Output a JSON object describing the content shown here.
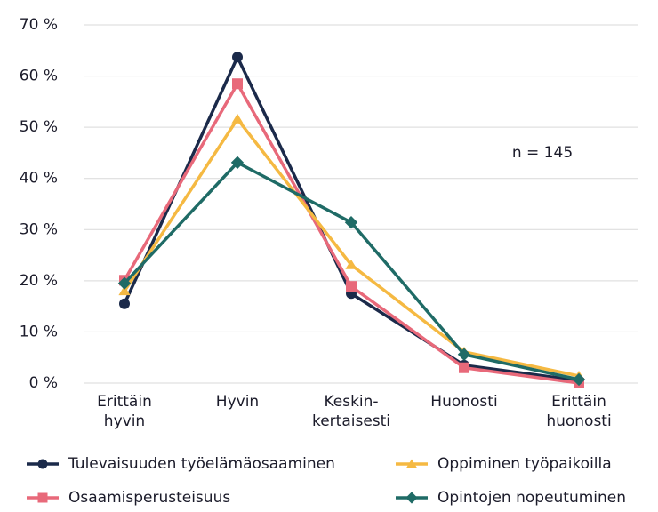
{
  "chart_data": {
    "type": "line",
    "annotation": "n = 145",
    "categories": [
      [
        "Erittäin",
        "hyvin"
      ],
      [
        "Hyvin"
      ],
      [
        "Keskin-",
        "kertaisesti"
      ],
      [
        "Huonosti"
      ],
      [
        "Erittäin",
        "huonosti"
      ]
    ],
    "series": [
      {
        "name": "Tulevaisuuden työelämäosaaminen",
        "color": "#1b2a4a",
        "marker": "circle",
        "values": [
          15.5,
          63.7,
          17.5,
          3.5,
          0.5
        ]
      },
      {
        "name": "Osaamisperusteisuus",
        "color": "#e8697a",
        "marker": "square",
        "values": [
          20.1,
          58.5,
          18.9,
          3,
          0
        ]
      },
      {
        "name": "Oppiminen työpaikoilla",
        "color": "#f5b942",
        "marker": "triangle",
        "values": [
          18,
          51.6,
          23.1,
          6.1,
          1.4
        ]
      },
      {
        "name": "Opintojen nopeutuminen",
        "color": "#1f6b66",
        "marker": "diamond",
        "values": [
          19.5,
          43.1,
          31.4,
          5.6,
          0.7
        ]
      }
    ],
    "ylim": [
      0,
      70
    ],
    "yticks": [
      {
        "value": 0,
        "label": "0 %"
      },
      {
        "value": 10,
        "label": "10 %"
      },
      {
        "value": 20,
        "label": "20 %"
      },
      {
        "value": 30,
        "label": "30 %"
      },
      {
        "value": 40,
        "label": "40 %"
      },
      {
        "value": 50,
        "label": "50 %"
      },
      {
        "value": 60,
        "label": "60 %"
      },
      {
        "value": 70,
        "label": "70 %"
      }
    ],
    "grid": true
  }
}
